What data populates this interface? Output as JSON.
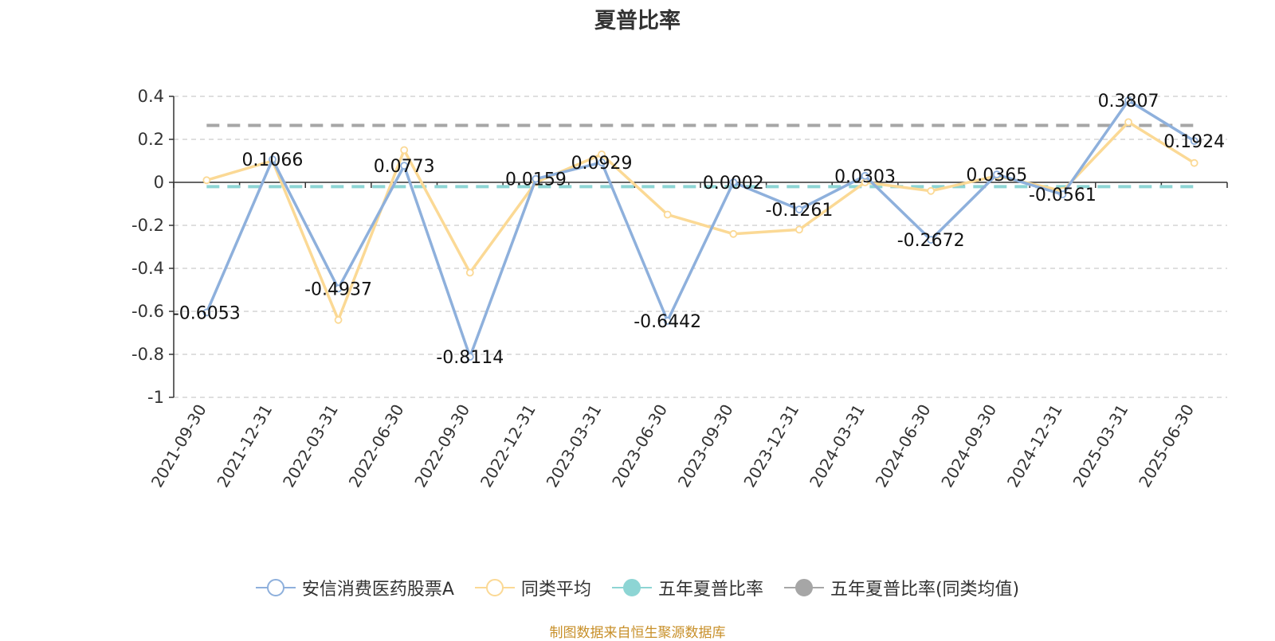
{
  "chart_data": {
    "type": "line",
    "title": "夏普比率",
    "categories": [
      "2021-09-30",
      "2021-12-31",
      "2022-03-31",
      "2022-06-30",
      "2022-09-30",
      "2022-12-31",
      "2023-03-31",
      "2023-06-30",
      "2023-09-30",
      "2023-12-31",
      "2024-03-31",
      "2024-06-30",
      "2024-09-30",
      "2024-12-31",
      "2025-03-31",
      "2025-06-30"
    ],
    "series": [
      {
        "name": "安信消费医药股票A",
        "color": "#8eb0dc",
        "marker": "hollow-circle",
        "values": [
          -0.6053,
          0.1066,
          -0.4937,
          0.0773,
          -0.8114,
          0.0159,
          0.0929,
          -0.6442,
          0.0002,
          -0.1261,
          0.0303,
          -0.2672,
          0.0365,
          -0.0561,
          0.3807,
          0.1924
        ],
        "labels": [
          "-0.6053",
          "0.1066",
          "-0.4937",
          "0.0773",
          "-0.8114",
          "0.0159",
          "0.0929",
          "-0.6442",
          "0.0002",
          "-0.1261",
          "0.0303",
          "-0.2672",
          "0.0365",
          "-0.0561",
          "0.3807",
          "0.1924"
        ]
      },
      {
        "name": "同类平均",
        "color": "#fbd995",
        "marker": "hollow-circle",
        "values": [
          0.01,
          0.1,
          -0.64,
          0.15,
          -0.42,
          0.0,
          0.13,
          -0.15,
          -0.24,
          -0.22,
          0.0,
          -0.04,
          0.03,
          -0.04,
          0.28,
          0.09
        ]
      },
      {
        "name": "五年夏普比率",
        "color": "#8dd5d4",
        "marker": "filled-circle",
        "dashed": true,
        "constant": -0.02
      },
      {
        "name": "五年夏普比率(同类均值)",
        "color": "#a6a6a6",
        "marker": "filled-circle",
        "dashed": true,
        "constant": 0.265
      }
    ],
    "ylim": [
      -1,
      0.4
    ],
    "yticks": [
      0.4,
      0.2,
      0,
      -0.2,
      -0.4,
      -0.6,
      -0.8,
      -1
    ],
    "ytick_labels": [
      "0.4",
      "0.2",
      "0",
      "-0.2",
      "-0.4",
      "-0.6",
      "-0.8",
      "-1"
    ],
    "grid": true,
    "legend_position": "bottom"
  },
  "source_note": "制图数据来自恒生聚源数据库"
}
